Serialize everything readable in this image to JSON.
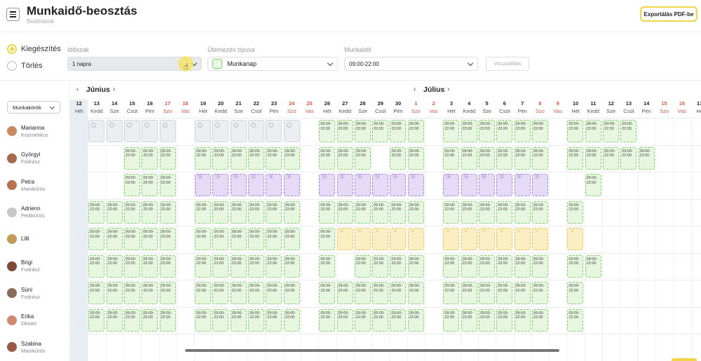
{
  "header": {
    "title": "Munkaidő-beosztás",
    "subtitle": "Beállítások",
    "export_label": "Exportálás PDF-be"
  },
  "controls": {
    "mode_options": [
      {
        "label": "Kiegészítés",
        "selected": true
      },
      {
        "label": "Törlés",
        "selected": false
      }
    ],
    "period_label": "Időszak",
    "period_value": "1 napra",
    "schedule_type_label": "Ütemezés típusa",
    "schedule_type_value": "Munkanap",
    "worktime_label": "Munkaidő",
    "worktime_value": "09:00-22:00",
    "reset_label": "Visszaállítás"
  },
  "left": {
    "role_filter_label": "Munkakörök",
    "employees": [
      {
        "name": "Marianna",
        "role": "Kozmetikus",
        "color": "#c9885f"
      },
      {
        "name": "Györgyi",
        "role": "Fodrász",
        "color": "#a86a4c"
      },
      {
        "name": "Petra",
        "role": "Manikűrös",
        "color": "#b5734f"
      },
      {
        "name": "Adrienn",
        "role": "Pedikűrös",
        "color": "#c8c8c8"
      },
      {
        "name": "Lilli",
        "role": "",
        "color": "#c29a5a"
      },
      {
        "name": "Brigi",
        "role": "Fodrász",
        "color": "#7a4a3a"
      },
      {
        "name": "Süni",
        "role": "Fodrász",
        "color": "#8a6a5a"
      },
      {
        "name": "Erika",
        "role": "Oktató",
        "color": "#d08a72"
      },
      {
        "name": "Szabina",
        "role": "Manikűrös",
        "color": "#9a5a48"
      }
    ]
  },
  "calendar": {
    "months": [
      {
        "label": "Június",
        "prev": "‹",
        "next": "›"
      },
      {
        "label": "Július",
        "prev": "‹",
        "next": "›"
      }
    ],
    "days": [
      {
        "n": "12",
        "w": "Hét",
        "we": false
      },
      {
        "n": "13",
        "w": "Kedd",
        "we": false
      },
      {
        "n": "14",
        "w": "Sze",
        "we": false
      },
      {
        "n": "15",
        "w": "Csüt",
        "we": false
      },
      {
        "n": "16",
        "w": "Pén",
        "we": false
      },
      {
        "n": "17",
        "w": "Szo",
        "we": true
      },
      {
        "n": "18",
        "w": "Vas",
        "we": true
      },
      {
        "n": "19",
        "w": "Hét",
        "we": false
      },
      {
        "n": "20",
        "w": "Kedd",
        "we": false
      },
      {
        "n": "21",
        "w": "Sze",
        "we": false
      },
      {
        "n": "22",
        "w": "Csüt",
        "we": false
      },
      {
        "n": "23",
        "w": "Pén",
        "we": false
      },
      {
        "n": "24",
        "w": "Szo",
        "we": true
      },
      {
        "n": "25",
        "w": "Vas",
        "we": true
      },
      {
        "n": "26",
        "w": "Hét",
        "we": false
      },
      {
        "n": "27",
        "w": "Kedd",
        "we": false
      },
      {
        "n": "28",
        "w": "Sze",
        "we": false
      },
      {
        "n": "29",
        "w": "Csüt",
        "we": false
      },
      {
        "n": "30",
        "w": "Pén",
        "we": false
      },
      {
        "n": "1",
        "w": "Szo",
        "we": true
      },
      {
        "n": "2",
        "w": "Vas",
        "we": true
      },
      {
        "n": "3",
        "w": "Hét",
        "we": false
      },
      {
        "n": "4",
        "w": "Kedd",
        "we": false
      },
      {
        "n": "5",
        "w": "Sze",
        "we": false
      },
      {
        "n": "6",
        "w": "Csüt",
        "we": false
      },
      {
        "n": "7",
        "w": "Pén",
        "we": false
      },
      {
        "n": "8",
        "w": "Szo",
        "we": true
      },
      {
        "n": "9",
        "w": "Vas",
        "we": true
      },
      {
        "n": "10",
        "w": "Hét",
        "we": false
      },
      {
        "n": "11",
        "w": "Kedd",
        "we": false
      },
      {
        "n": "12",
        "w": "Sze",
        "we": false
      },
      {
        "n": "13",
        "w": "Csüt",
        "we": false
      },
      {
        "n": "14",
        "w": "Pén",
        "we": false
      },
      {
        "n": "15",
        "w": "Szo",
        "we": true
      },
      {
        "n": "16",
        "w": "Vas",
        "we": true
      },
      {
        "n": "17",
        "w": "Hé",
        "we": false
      }
    ],
    "shift_text": [
      "09:00-",
      "22:00"
    ],
    "legend": {
      "W": "work",
      "O": "off",
      "E": "edu",
      "V": "vac",
      ".": "empty"
    },
    "rows": [
      ".OOOOO.OOOOOO.WWWWWW.WWWWWW.WWWW....",
      "...WWW.WWWWWW.WWW.WW.WWWWWW.WWWWW...",
      "...WWW.EEEEEE.EEEEEE.EEEEEE..W......",
      ".WWWWW.WWWWWW.WWWWWW.WWWWWW.W.......",
      ".WWWWW.WWWWWW.WVVVVV.VVVVVV.V.......",
      ".WWWWW.WWWWWW.W.WWWW.WWWWWW.WW......",
      ".WWWWW.WWWWWW.WWWWWW.WWWWWW.W.......",
      ".WWWWW.WWWWWW.WWWWWW.WWWWWW.W.......",
      "...................................."
    ]
  }
}
